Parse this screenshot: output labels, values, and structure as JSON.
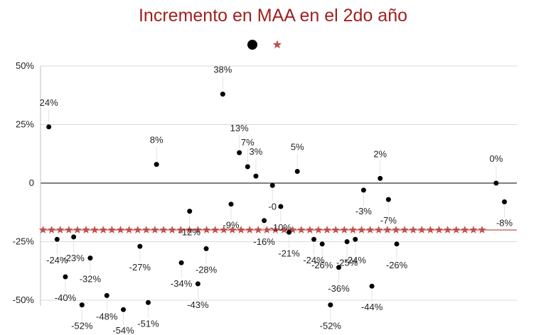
{
  "chart_data": {
    "type": "scatter",
    "title": "Incremento en MAA en el 2do año",
    "xlabel": "",
    "ylabel": "",
    "ylim": [
      -0.5,
      0.5
    ],
    "yticks": [
      {
        "value": 0.5,
        "label": "50%"
      },
      {
        "value": 0.25,
        "label": "25%"
      },
      {
        "value": 0,
        "label": "0"
      },
      {
        "value": -0.25,
        "label": "-25%"
      },
      {
        "value": -0.5,
        "label": "-50%"
      }
    ],
    "grid": true,
    "legend": {
      "placement": "top-center"
    },
    "colors": {
      "points": "#000000",
      "average": "#c0504d",
      "title": "#a31f1f"
    },
    "average_value": -0.2,
    "average_markers": 52,
    "series": [
      {
        "kind": "points",
        "points": [
          {
            "x": 1,
            "y": 0.24,
            "label": "24%"
          },
          {
            "x": 2,
            "y": -0.24,
            "label": "-24%"
          },
          {
            "x": 3,
            "y": -0.4,
            "label": "-40%"
          },
          {
            "x": 4,
            "y": -0.23,
            "label": "-23%"
          },
          {
            "x": 5,
            "y": -0.52,
            "label": "-52%"
          },
          {
            "x": 6,
            "y": -0.32,
            "label": "-32%"
          },
          {
            "x": 8,
            "y": -0.48,
            "label": "-48%"
          },
          {
            "x": 10,
            "y": -0.54,
            "label": "-54%"
          },
          {
            "x": 12,
            "y": -0.27,
            "label": "-27%"
          },
          {
            "x": 13,
            "y": -0.51,
            "label": "-51%"
          },
          {
            "x": 14,
            "y": 0.08,
            "label": "8%"
          },
          {
            "x": 17,
            "y": -0.34,
            "label": "-34%"
          },
          {
            "x": 18,
            "y": -0.12,
            "label": "-12%"
          },
          {
            "x": 19,
            "y": -0.43,
            "label": "-43%"
          },
          {
            "x": 20,
            "y": -0.28,
            "label": "-28%"
          },
          {
            "x": 22,
            "y": 0.38,
            "label": "38%"
          },
          {
            "x": 23,
            "y": -0.09,
            "label": "-9%"
          },
          {
            "x": 24,
            "y": 0.13,
            "label": "13%"
          },
          {
            "x": 25,
            "y": 0.07,
            "label": "7%"
          },
          {
            "x": 26,
            "y": 0.03,
            "label": "3%"
          },
          {
            "x": 27,
            "y": -0.16,
            "label": "-16%"
          },
          {
            "x": 28,
            "y": -0.01,
            "label": "-0"
          },
          {
            "x": 29,
            "y": -0.1,
            "label": "-10%"
          },
          {
            "x": 30,
            "y": -0.21,
            "label": "-21%"
          },
          {
            "x": 31,
            "y": 0.05,
            "label": "5%"
          },
          {
            "x": 33,
            "y": -0.24,
            "label": "-24%"
          },
          {
            "x": 34,
            "y": -0.26,
            "label": "-26%"
          },
          {
            "x": 35,
            "y": -0.52,
            "label": "-52%"
          },
          {
            "x": 36,
            "y": -0.36,
            "label": "-36%"
          },
          {
            "x": 37,
            "y": -0.25,
            "label": "-25%"
          },
          {
            "x": 38,
            "y": -0.24,
            "label": "-24%"
          },
          {
            "x": 39,
            "y": -0.03,
            "label": "-3%"
          },
          {
            "x": 40,
            "y": -0.44,
            "label": "-44%"
          },
          {
            "x": 41,
            "y": 0.02,
            "label": "2%"
          },
          {
            "x": 42,
            "y": -0.07,
            "label": "-7%"
          },
          {
            "x": 43,
            "y": -0.26,
            "label": "-26%"
          },
          {
            "x": 55,
            "y": 0.0,
            "label": "0%"
          },
          {
            "x": 56,
            "y": -0.08,
            "label": "-8%"
          }
        ]
      },
      {
        "kind": "average",
        "points": []
      }
    ]
  }
}
